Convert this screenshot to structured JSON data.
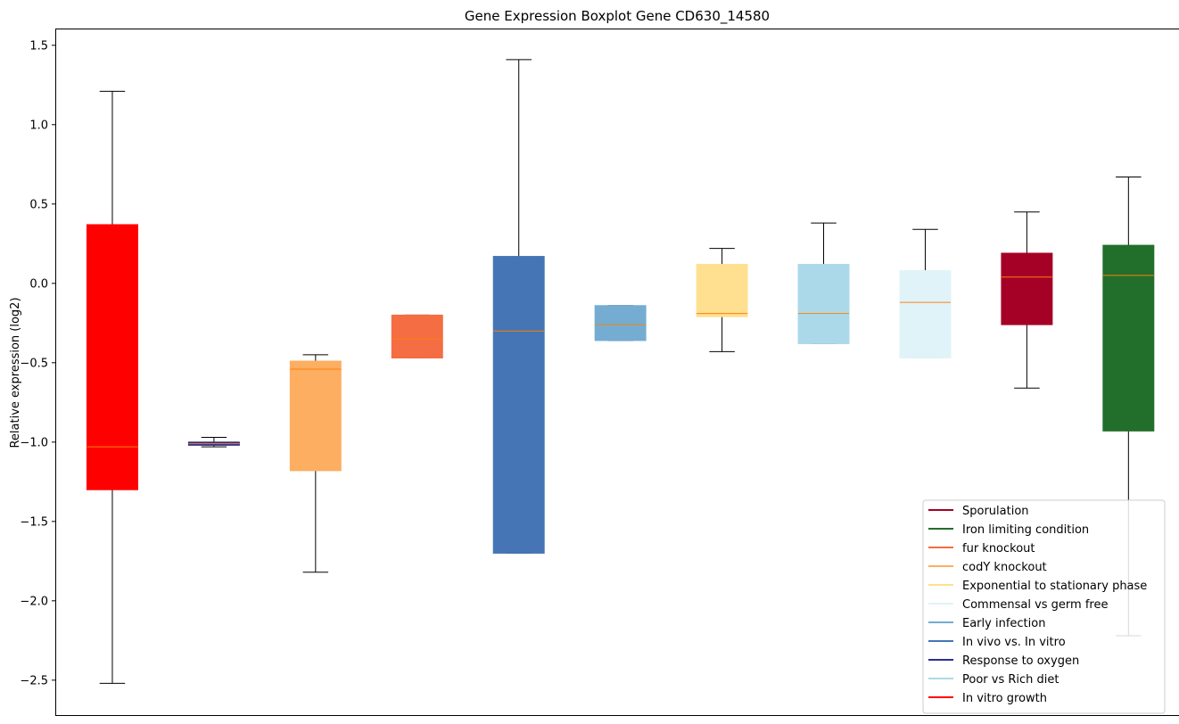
{
  "chart_data": {
    "type": "boxplot",
    "title": "Gene Expression Boxplot Gene CD630_14580",
    "xlabel": "",
    "ylabel": "Relative expression (log2)",
    "ylim": [
      -2.72,
      1.6
    ],
    "yticks": [
      1.5,
      1.0,
      0.5,
      0.0,
      -0.5,
      -1.0,
      -1.5,
      -2.0,
      -2.5
    ],
    "ytick_labels": [
      "1.5",
      "1.0",
      "0.5",
      "0.0",
      "−0.5",
      "−1.0",
      "−1.5",
      "−2.0",
      "−2.5"
    ],
    "median_color": "#ff7f0e",
    "boxes": [
      {
        "color": "#ff0000",
        "whislo": -2.52,
        "q1": -1.3,
        "med": -1.03,
        "q3": 0.37,
        "whishi": 1.21
      },
      {
        "color": "#2b2f8f",
        "whislo": -1.03,
        "q1": -1.02,
        "med": -1.01,
        "q3": -1.0,
        "whishi": -0.97
      },
      {
        "color": "#fdae61",
        "whislo": -1.82,
        "q1": -1.18,
        "med": -0.54,
        "q3": -0.49,
        "whishi": -0.45
      },
      {
        "color": "#f46d43",
        "whislo": -0.47,
        "q1": -0.47,
        "med": -0.35,
        "q3": -0.2,
        "whishi": -0.2
      },
      {
        "color": "#4575b4",
        "whislo": -1.7,
        "q1": -1.7,
        "med": -0.3,
        "q3": 0.17,
        "whishi": 1.41
      },
      {
        "color": "#74add1",
        "whislo": -0.36,
        "q1": -0.36,
        "med": -0.26,
        "q3": -0.14,
        "whishi": -0.14
      },
      {
        "color": "#fee090",
        "whislo": -0.43,
        "q1": -0.21,
        "med": -0.19,
        "q3": 0.12,
        "whishi": 0.22
      },
      {
        "color": "#abd9e9",
        "whislo": -0.38,
        "q1": -0.38,
        "med": -0.19,
        "q3": 0.12,
        "whishi": 0.38
      },
      {
        "color": "#e0f3f8",
        "whislo": -0.47,
        "q1": -0.47,
        "med": -0.12,
        "q3": 0.08,
        "whishi": 0.34
      },
      {
        "color": "#a50026",
        "whislo": -0.66,
        "q1": -0.26,
        "med": 0.04,
        "q3": 0.19,
        "whishi": 0.45
      },
      {
        "color": "#226e2b",
        "whislo": -2.22,
        "q1": -0.93,
        "med": 0.05,
        "q3": 0.24,
        "whishi": 0.67
      }
    ],
    "legend_position": "lower-right",
    "legend": [
      {
        "label": "Sporulation",
        "color": "#a50026"
      },
      {
        "label": "Iron limiting condition",
        "color": "#226e2b"
      },
      {
        "label": "fur knockout",
        "color": "#f46d43"
      },
      {
        "label": "codY knockout",
        "color": "#fdae61"
      },
      {
        "label": "Exponential to stationary phase",
        "color": "#fee090"
      },
      {
        "label": "Commensal vs germ free",
        "color": "#e0f3f8"
      },
      {
        "label": "Early infection",
        "color": "#74add1"
      },
      {
        "label": "In vivo vs. In vitro",
        "color": "#4575b4"
      },
      {
        "label": "Response to oxygen",
        "color": "#2b2f8f"
      },
      {
        "label": "Poor vs Rich diet",
        "color": "#abd9e9"
      },
      {
        "label": "In vitro growth",
        "color": "#ff0000"
      }
    ]
  }
}
